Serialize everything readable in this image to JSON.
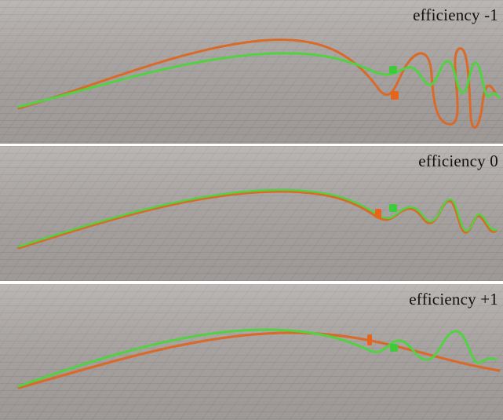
{
  "panels": [
    {
      "label": "efficiency -1"
    },
    {
      "label": "efficiency 0"
    },
    {
      "label": "efficiency +1"
    }
  ],
  "colors": {
    "floor": "#a9a4a2",
    "grid": "#8e8886",
    "green_curve": "#4fcf3f",
    "orange_curve": "#d96a2a",
    "green_marker": "#3ecb3a",
    "orange_marker": "#e6641c"
  }
}
